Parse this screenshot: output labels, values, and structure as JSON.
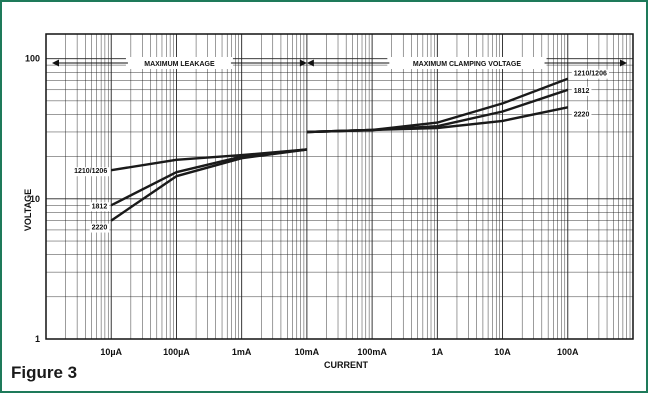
{
  "figure_label": "Figure 3",
  "chart_data": {
    "type": "line",
    "xlabel": "CURRENT",
    "ylabel": "VOLTAGE",
    "x_scale": "log",
    "y_scale": "log",
    "xlim": [
      "0.000001 A",
      "1000 A"
    ],
    "ylim": [
      1,
      150
    ],
    "grid": true,
    "x_ticks": [
      {
        "label": "10µA",
        "value": 1e-05
      },
      {
        "label": "100µA",
        "value": 0.0001
      },
      {
        "label": "1mA",
        "value": 0.001
      },
      {
        "label": "10mA",
        "value": 0.01
      },
      {
        "label": "100mA",
        "value": 0.1
      },
      {
        "label": "1A",
        "value": 1
      },
      {
        "label": "10A",
        "value": 10
      },
      {
        "label": "100A",
        "value": 100
      }
    ],
    "y_ticks": [
      {
        "label": "1",
        "value": 1
      },
      {
        "label": "10",
        "value": 10
      },
      {
        "label": "100",
        "value": 100
      }
    ],
    "regions": [
      {
        "label": "MAXIMUM LEAKAGE",
        "from": 1e-06,
        "to": 0.01
      },
      {
        "label": "MAXIMUM CLAMPING VOLTAGE",
        "from": 0.01,
        "to": 1000
      }
    ],
    "series": [
      {
        "name": "1210/1206",
        "leakage": [
          [
            1e-05,
            16.0
          ],
          [
            0.0001,
            19.0
          ],
          [
            0.001,
            20.5
          ],
          [
            0.01,
            22.5
          ]
        ],
        "clamping": [
          [
            0.01,
            30.0
          ],
          [
            0.1,
            31.0
          ],
          [
            1,
            35.0
          ],
          [
            10,
            48.0
          ],
          [
            100,
            72.0
          ]
        ]
      },
      {
        "name": "1812",
        "leakage": [
          [
            1e-05,
            9.0
          ],
          [
            0.0001,
            15.5
          ],
          [
            0.001,
            20.0
          ],
          [
            0.01,
            22.5
          ]
        ],
        "clamping": [
          [
            0.01,
            30.0
          ],
          [
            0.1,
            31.0
          ],
          [
            1,
            33.0
          ],
          [
            10,
            42.0
          ],
          [
            100,
            60.0
          ]
        ]
      },
      {
        "name": "2220",
        "leakage": [
          [
            1e-05,
            7.0
          ],
          [
            0.0001,
            14.5
          ],
          [
            0.001,
            19.5
          ],
          [
            0.01,
            22.5
          ]
        ],
        "clamping": [
          [
            0.01,
            30.0
          ],
          [
            0.1,
            31.0
          ],
          [
            1,
            32.0
          ],
          [
            10,
            36.0
          ],
          [
            100,
            45.0
          ]
        ]
      }
    ]
  }
}
